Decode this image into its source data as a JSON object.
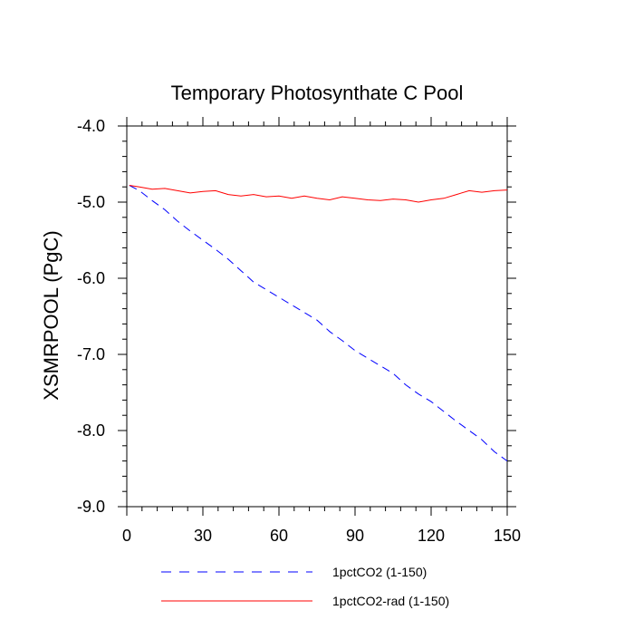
{
  "chart_data": {
    "type": "line",
    "title": "Temporary Photosynthate C Pool",
    "ylabel": "XSMRPOOL  (PgC)",
    "xlabel": "",
    "xlim": [
      0,
      150
    ],
    "ylim": [
      -9.0,
      -4.0
    ],
    "x_ticks": [
      0,
      30,
      60,
      90,
      120,
      150
    ],
    "x_tick_labels": [
      "0",
      "30",
      "60",
      "90",
      "120",
      "150"
    ],
    "y_ticks": [
      -9.0,
      -8.0,
      -7.0,
      -6.0,
      -5.0,
      -4.0
    ],
    "y_tick_labels": [
      "-9.0",
      "-8.0",
      "-7.0",
      "-6.0",
      "-5.0",
      "-4.0"
    ],
    "grid": false,
    "legend_position": "bottom",
    "series": [
      {
        "name": "1pctCO2 (1-150)",
        "color": "#0000ff",
        "style": "dashed",
        "x": [
          1,
          5,
          10,
          15,
          20,
          25,
          30,
          35,
          40,
          45,
          50,
          55,
          60,
          65,
          70,
          75,
          80,
          85,
          90,
          95,
          100,
          105,
          110,
          115,
          120,
          125,
          130,
          135,
          140,
          145,
          150
        ],
        "values": [
          -4.78,
          -4.85,
          -4.98,
          -5.1,
          -5.25,
          -5.38,
          -5.5,
          -5.62,
          -5.75,
          -5.9,
          -6.05,
          -6.15,
          -6.25,
          -6.35,
          -6.45,
          -6.55,
          -6.7,
          -6.82,
          -6.95,
          -7.05,
          -7.15,
          -7.25,
          -7.4,
          -7.52,
          -7.62,
          -7.75,
          -7.88,
          -8.0,
          -8.12,
          -8.28,
          -8.4
        ]
      },
      {
        "name": "1pctCO2-rad (1-150)",
        "color": "#ff0000",
        "style": "solid",
        "x": [
          1,
          5,
          10,
          15,
          20,
          25,
          30,
          35,
          40,
          45,
          50,
          55,
          60,
          65,
          70,
          75,
          80,
          85,
          90,
          95,
          100,
          105,
          110,
          115,
          120,
          125,
          130,
          135,
          140,
          145,
          150
        ],
        "values": [
          -4.78,
          -4.8,
          -4.83,
          -4.82,
          -4.85,
          -4.88,
          -4.86,
          -4.85,
          -4.9,
          -4.92,
          -4.9,
          -4.93,
          -4.92,
          -4.95,
          -4.92,
          -4.95,
          -4.97,
          -4.93,
          -4.95,
          -4.97,
          -4.98,
          -4.96,
          -4.97,
          -5.0,
          -4.97,
          -4.95,
          -4.9,
          -4.85,
          -4.87,
          -4.85,
          -4.84
        ]
      }
    ]
  }
}
